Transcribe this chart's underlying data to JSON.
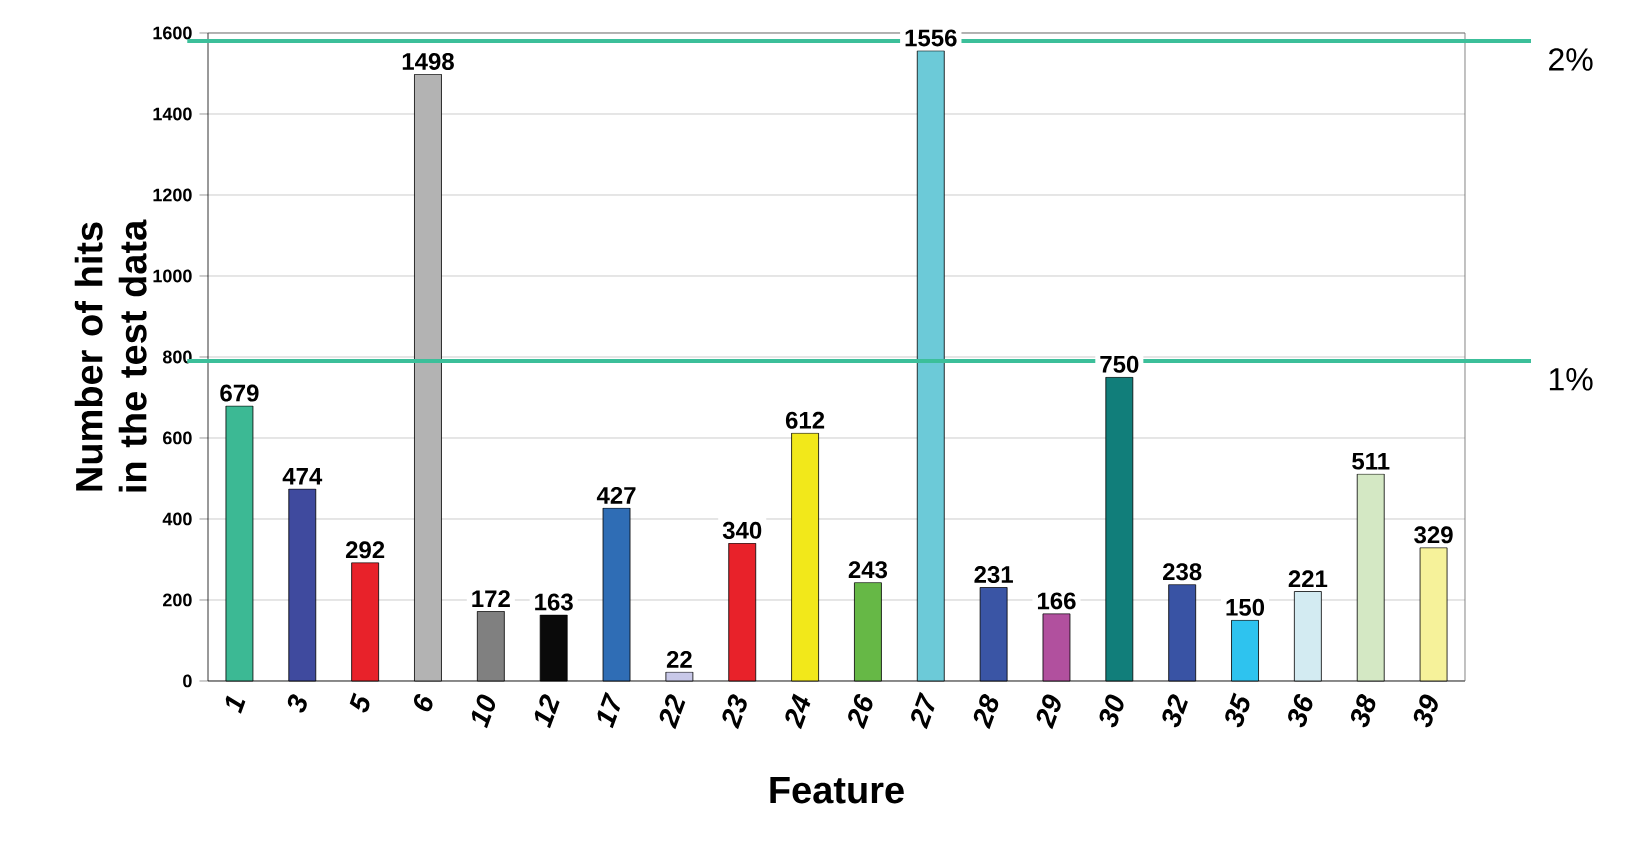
{
  "chart_data": {
    "type": "bar",
    "xlabel": "Feature",
    "ylabel": "Number of hits in the test data",
    "categories": [
      "1",
      "3",
      "5",
      "6",
      "10",
      "12",
      "17",
      "22",
      "23",
      "24",
      "26",
      "27",
      "28",
      "29",
      "30",
      "32",
      "35",
      "36",
      "38",
      "39"
    ],
    "values": [
      679,
      474,
      292,
      1498,
      172,
      163,
      427,
      22,
      340,
      612,
      243,
      1556,
      231,
      166,
      750,
      238,
      150,
      221,
      511,
      329
    ],
    "colors": [
      "#3cb994",
      "#3f4a9e",
      "#e8222a",
      "#b3b3b3",
      "#808080",
      "#0a0a0a",
      "#2f6db5",
      "#c8c8e8",
      "#e8222a",
      "#f2e81a",
      "#66b846",
      "#6ccad8",
      "#3a55a5",
      "#b1509e",
      "#117e7a",
      "#3953a4",
      "#2ec3ef",
      "#d3ebf2",
      "#d4e8c4",
      "#f6f29a"
    ],
    "ylim": [
      0,
      1600
    ],
    "yticks": [
      0,
      200,
      400,
      600,
      800,
      1000,
      1200,
      1400,
      1600
    ],
    "grid": "y",
    "data_labels": true,
    "ref_lines": [
      {
        "axis": "y",
        "value": 1580,
        "color": "#3cbf9a"
      },
      {
        "axis": "y",
        "value": 790,
        "color": "#3cbf9a"
      }
    ],
    "annotations": [
      "2%",
      "1%"
    ]
  }
}
